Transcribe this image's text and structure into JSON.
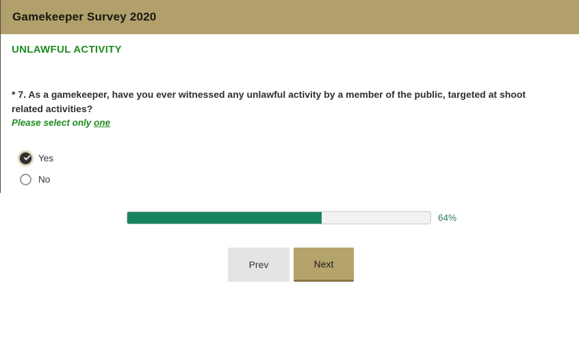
{
  "header": {
    "title": "Gamekeeper Survey 2020"
  },
  "section": {
    "title": "UNLAWFUL ACTIVITY"
  },
  "question": {
    "text": "* 7. As a gamekeeper, have you ever witnessed any unlawful activity by a member of the public, targeted at shoot related activities?",
    "instruction_prefix": "Please select only ",
    "instruction_emphasis": "one"
  },
  "options": [
    {
      "label": "Yes",
      "selected": true
    },
    {
      "label": "No",
      "selected": false
    }
  ],
  "progress": {
    "percent": 64,
    "label": "64%"
  },
  "buttons": {
    "prev": "Prev",
    "next": "Next"
  },
  "colors": {
    "header_background": "#b1a06c",
    "section_title_green": "#1f8b1f",
    "progress_fill_green": "#17845f",
    "progress_track": "#f2f2f2",
    "next_button": "#b5a36c",
    "prev_button": "#e4e4e4",
    "selected_radio": "#2f2f2f"
  }
}
